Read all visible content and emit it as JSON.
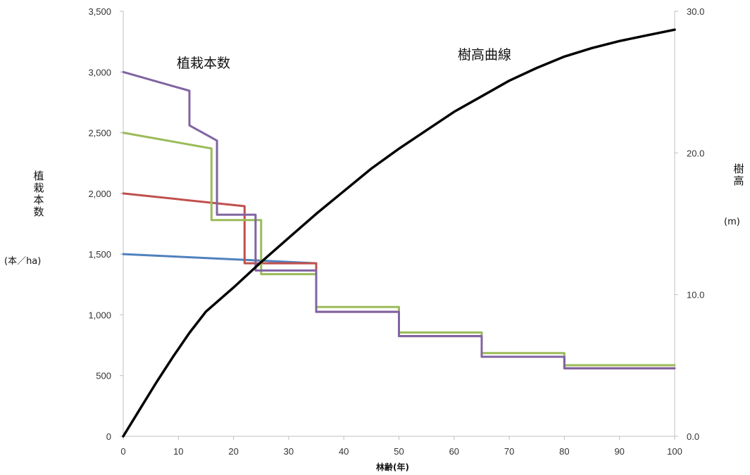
{
  "chart_data": {
    "type": "line",
    "xlabel": "林齢(年)",
    "ylabel_left": "植栽本数",
    "ylabel_left_unit": "(本／ha)",
    "ylabel_right": "樹高",
    "ylabel_right_unit": "(m)",
    "annotations": {
      "density": "植栽本数",
      "height": "樹高曲線"
    },
    "xlim": [
      0,
      100
    ],
    "ylim_left": [
      0,
      3500
    ],
    "ylim_right": [
      0,
      30
    ],
    "x_ticks": [
      0,
      10,
      20,
      30,
      40,
      50,
      60,
      70,
      80,
      90,
      100
    ],
    "y_left_ticks": [
      {
        "value": 0,
        "label": "0"
      },
      {
        "value": 500,
        "label": "500"
      },
      {
        "value": 1000,
        "label": "1,000"
      },
      {
        "value": 1500,
        "label": "1,500"
      },
      {
        "value": 2000,
        "label": "2,000"
      },
      {
        "value": 2500,
        "label": "2,500"
      },
      {
        "value": 3000,
        "label": "3,000"
      },
      {
        "value": 3500,
        "label": "3,500"
      }
    ],
    "y_right_ticks": [
      {
        "value": 0,
        "label": "0.0"
      },
      {
        "value": 10,
        "label": "10.0"
      },
      {
        "value": 20,
        "label": "20.0"
      },
      {
        "value": 30,
        "label": "30.0"
      }
    ],
    "grid": false,
    "series": [
      {
        "axis": "left",
        "color": "#4f81bd",
        "x": [
          0,
          35
        ],
        "y": [
          1500,
          1425
        ]
      },
      {
        "axis": "left",
        "color": "#c0504d",
        "x": [
          0,
          22,
          22,
          35,
          35,
          50,
          50,
          65,
          65,
          80,
          80,
          100
        ],
        "y": [
          2000,
          1895,
          1425,
          1425,
          1025,
          1025,
          825,
          825,
          655,
          655,
          560,
          560
        ]
      },
      {
        "axis": "left",
        "color": "#9bbb59",
        "x": [
          0,
          16,
          16,
          25,
          25,
          35,
          35,
          50,
          50,
          65,
          65,
          80,
          80,
          100
        ],
        "y": [
          2500,
          2370,
          1780,
          1780,
          1335,
          1335,
          1065,
          1065,
          855,
          855,
          685,
          685,
          585,
          585
        ]
      },
      {
        "axis": "left",
        "color": "#8064a2",
        "x": [
          0,
          12,
          12,
          17,
          17,
          24,
          24,
          35,
          35,
          50,
          50,
          65,
          65,
          80,
          80,
          100
        ],
        "y": [
          3000,
          2845,
          2560,
          2435,
          1825,
          1825,
          1365,
          1365,
          1025,
          1025,
          825,
          825,
          655,
          655,
          560,
          560
        ]
      },
      {
        "axis": "right",
        "color": "#000000",
        "x": [
          0,
          3,
          6,
          9,
          12,
          15,
          20,
          25,
          30,
          35,
          40,
          45,
          50,
          55,
          60,
          65,
          70,
          75,
          80,
          85,
          90,
          95,
          100
        ],
        "y": [
          0,
          1.9,
          3.8,
          5.6,
          7.3,
          8.8,
          10.5,
          12.3,
          14.0,
          15.7,
          17.3,
          18.9,
          20.3,
          21.6,
          22.9,
          24.0,
          25.1,
          26.0,
          26.8,
          27.4,
          27.9,
          28.3,
          28.7
        ]
      }
    ]
  }
}
